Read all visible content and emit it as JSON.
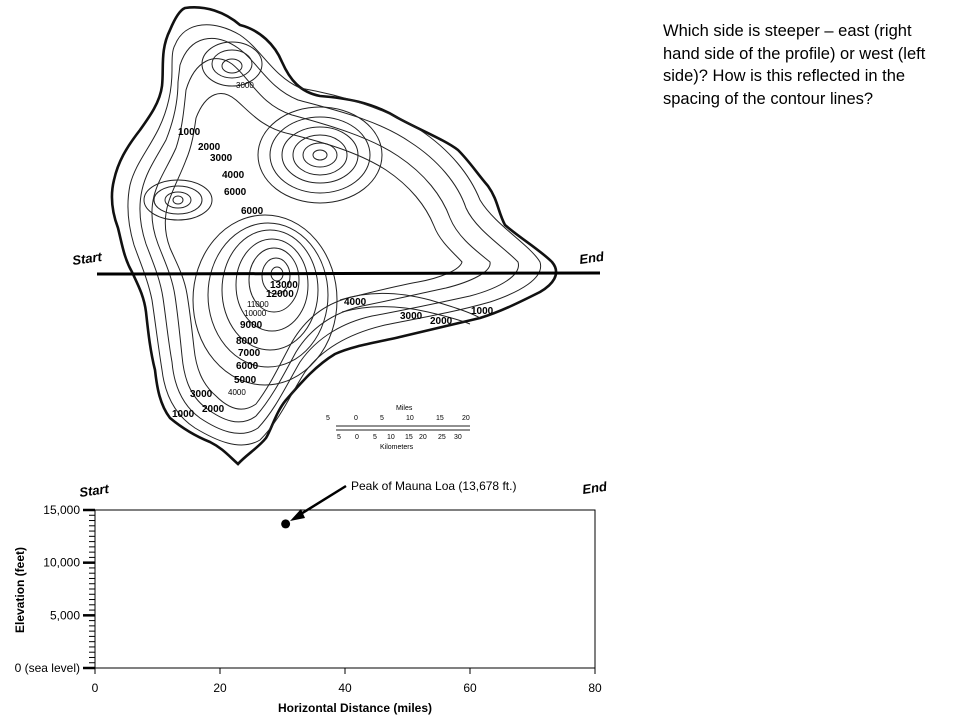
{
  "question": "Which side is steeper – east (right hand side of the profile) or west (left side)?  How is this reflected in the spacing of the contour lines?",
  "map": {
    "start_label": "Start",
    "end_label": "End",
    "contour_labels": [
      "3000",
      "1000",
      "2000",
      "3000",
      "4000",
      "6000",
      "6000",
      "13000",
      "12000",
      "11000",
      "10000",
      "9000",
      "8000",
      "7000",
      "6000",
      "5000",
      "3000",
      "4000",
      "2000",
      "1000",
      "4000",
      "3000",
      "2000",
      "1000"
    ],
    "scale": {
      "miles_title": "Miles",
      "miles_ticks": [
        "5",
        "0",
        "5",
        "10",
        "15",
        "20"
      ],
      "km_ticks": [
        "5",
        "0",
        "5",
        "10",
        "15",
        "20",
        "25",
        "30"
      ],
      "km_title": "Kilometers"
    }
  },
  "chart_data": {
    "type": "scatter",
    "start_label": "Start",
    "end_label": "End",
    "xlabel": "Horizontal Distance (miles)",
    "ylabel": "Elevation (feet)",
    "xlim": [
      0,
      80
    ],
    "ylim": [
      0,
      15000
    ],
    "x_ticks": [
      "0",
      "20",
      "40",
      "60",
      "80"
    ],
    "y_ticks": [
      "0 (sea level)",
      "5,000",
      "10,000",
      "15,000"
    ],
    "points": [
      {
        "x": 30.5,
        "y": 13678
      }
    ],
    "annotation": "Peak of Mauna Loa (13,678 ft.)"
  }
}
